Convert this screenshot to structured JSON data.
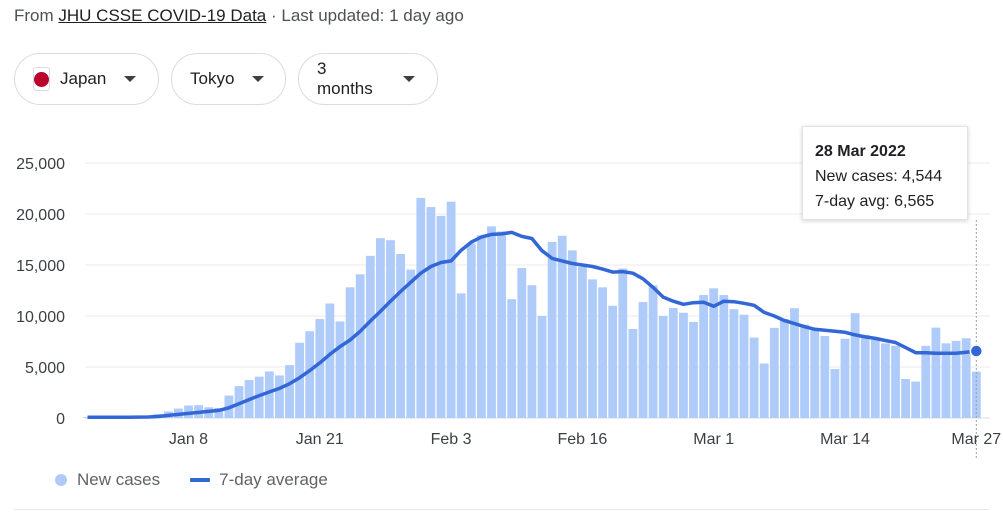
{
  "source": {
    "prefix": "From",
    "link": "JHU CSSE COVID-19 Data",
    "suffix": "· Last updated: 1 day ago"
  },
  "filters": {
    "country": "Japan",
    "region": "Tokyo",
    "range": "3 months"
  },
  "colors": {
    "bar": "#aecbfa",
    "line": "#3367d6",
    "flag": "#bc002d"
  },
  "tooltip": {
    "date": "28 Mar 2022",
    "new_cases": "New cases: 4,544",
    "avg": "7-day avg: 6,565"
  },
  "legend": {
    "bars": "New cases",
    "line": "7-day average"
  },
  "chart_data": {
    "type": "bar",
    "x_start": "2021-12-29",
    "y_ticks": [
      "0",
      "5,000",
      "10,000",
      "15,000",
      "20,000",
      "25,000"
    ],
    "x_ticks": [
      {
        "label": "Jan 8",
        "day": 10
      },
      {
        "label": "Jan 21",
        "day": 23
      },
      {
        "label": "Feb 3",
        "day": 36
      },
      {
        "label": "Feb 16",
        "day": 49
      },
      {
        "label": "Mar 1",
        "day": 62
      },
      {
        "label": "Mar 14",
        "day": 75
      },
      {
        "label": "Mar 27",
        "day": 88
      }
    ],
    "ylim": [
      0,
      25000
    ],
    "grid": true,
    "legend_position": "bottom-left",
    "series": [
      {
        "name": "New cases",
        "type": "bar",
        "values": [
          76,
          64,
          79,
          103,
          121,
          151,
          193,
          390,
          641,
          922,
          1224,
          1256,
          1052,
          978,
          2198,
          3124,
          3719,
          4051,
          4561,
          4172,
          5185,
          7377,
          8503,
          9699,
          11227,
          9468,
          12813,
          14086,
          15895,
          17631,
          17433,
          16079,
          14554,
          21576,
          20679,
          19816,
          21208,
          12219,
          17113,
          17913,
          18787,
          18287,
          11648,
          14700,
          13015,
          9999,
          17262,
          17864,
          16432,
          14829,
          13592,
          12806,
          11006,
          14658,
          8732,
          11368,
          13002,
          10000,
          10780,
          10319,
          9416,
          12052,
          12714,
          12053,
          10664,
          10125,
          7886,
          5340,
          8836,
          9719,
          10760,
          9153,
          8618,
          8035,
          4797,
          7771,
          10273,
          8150,
          7675,
          7314,
          7094,
          3827,
          3573,
          7075,
          8862,
          7322,
          7568,
          7821,
          4544
        ]
      },
      {
        "name": "7-day average",
        "type": "line",
        "values": [
          80,
          80,
          80,
          80,
          80,
          85,
          95,
          150,
          250,
          350,
          450,
          550,
          650,
          750,
          1000,
          1400,
          1800,
          2200,
          2550,
          2900,
          3350,
          3950,
          4650,
          5400,
          6250,
          7000,
          7650,
          8500,
          9500,
          10450,
          11450,
          12400,
          13300,
          14200,
          14850,
          15250,
          15400,
          16450,
          17250,
          17750,
          18000,
          18050,
          18200,
          17800,
          17600,
          16400,
          15650,
          15400,
          15150,
          15000,
          14850,
          14600,
          14300,
          14350,
          14200,
          13650,
          12800,
          11850,
          11450,
          11150,
          11300,
          11350,
          10950,
          11450,
          11400,
          11250,
          11050,
          10350,
          10000,
          9550,
          9250,
          8950,
          8700,
          8600,
          8500,
          8400,
          8150,
          7950,
          7800,
          7600,
          7400,
          6900,
          6400,
          6400,
          6350,
          6350,
          6350,
          6450,
          6565
        ]
      }
    ]
  }
}
